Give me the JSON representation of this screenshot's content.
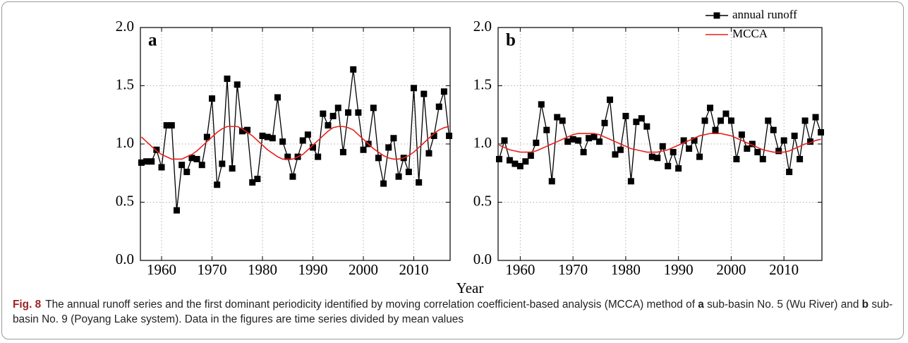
{
  "xlabel": "Year",
  "chart_data": [
    {
      "type": "line",
      "panel_label": "a",
      "x": [
        1956,
        1957,
        1958,
        1959,
        1960,
        1961,
        1962,
        1963,
        1964,
        1965,
        1966,
        1967,
        1968,
        1969,
        1970,
        1971,
        1972,
        1973,
        1974,
        1975,
        1976,
        1977,
        1978,
        1979,
        1980,
        1981,
        1982,
        1983,
        1984,
        1985,
        1986,
        1987,
        1988,
        1989,
        1990,
        1991,
        1992,
        1993,
        1994,
        1995,
        1996,
        1997,
        1998,
        1999,
        2000,
        2001,
        2002,
        2003,
        2004,
        2005,
        2006,
        2007,
        2008,
        2009,
        2010,
        2011,
        2012,
        2013,
        2014,
        2015,
        2016,
        2017
      ],
      "series": [
        {
          "color": "#000000",
          "marker": "square",
          "values": [
            0.84,
            0.85,
            0.85,
            0.95,
            0.8,
            1.16,
            1.16,
            0.43,
            0.82,
            0.76,
            0.88,
            0.87,
            0.82,
            1.06,
            1.39,
            0.65,
            0.83,
            1.56,
            0.79,
            1.51,
            1.11,
            1.12,
            0.67,
            0.7,
            1.07,
            1.06,
            1.05,
            1.4,
            1.02,
            0.89,
            0.72,
            0.89,
            1.03,
            1.08,
            0.97,
            0.89,
            1.26,
            1.16,
            1.24,
            1.31,
            0.93,
            1.27,
            1.64,
            1.27,
            0.95,
            1.0,
            1.31,
            0.88,
            0.66,
            0.97,
            1.05,
            0.72,
            0.88,
            0.76,
            1.48,
            0.67,
            1.43,
            0.92,
            1.07,
            1.32,
            1.45,
            1.07
          ]
        },
        {
          "color": "#e8201c",
          "values": [
            1.06,
            1.02,
            0.98,
            0.94,
            0.91,
            0.89,
            0.87,
            0.87,
            0.87,
            0.89,
            0.91,
            0.94,
            0.98,
            1.02,
            1.06,
            1.1,
            1.13,
            1.15,
            1.15,
            1.15,
            1.13,
            1.1,
            1.07,
            1.03,
            0.99,
            0.95,
            0.92,
            0.89,
            0.87,
            0.87,
            0.87,
            0.89,
            0.91,
            0.95,
            0.99,
            1.03,
            1.07,
            1.11,
            1.14,
            1.15,
            1.15,
            1.14,
            1.12,
            1.08,
            1.04,
            1.0,
            0.96,
            0.93,
            0.9,
            0.88,
            0.87,
            0.87,
            0.88,
            0.9,
            0.93,
            0.97,
            1.01,
            1.05,
            1.09,
            1.12,
            1.14,
            1.15
          ]
        }
      ],
      "xlim": [
        1955.8,
        2017.2
      ],
      "xticks": [
        1960,
        1970,
        1980,
        1990,
        2000,
        2010
      ],
      "ylim": [
        0,
        2
      ],
      "yticks": [
        {
          "value": 0,
          "label": "0.0"
        },
        {
          "value": 0.5,
          "label": "0.5"
        },
        {
          "value": 1,
          "label": "1.0"
        },
        {
          "value": 1.5,
          "label": "1.5"
        },
        {
          "value": 2,
          "label": "2.0"
        }
      ],
      "grid": true
    },
    {
      "type": "line",
      "panel_label": "b",
      "x": [
        1956,
        1957,
        1958,
        1959,
        1960,
        1961,
        1962,
        1963,
        1964,
        1965,
        1966,
        1967,
        1968,
        1969,
        1970,
        1971,
        1972,
        1973,
        1974,
        1975,
        1976,
        1977,
        1978,
        1979,
        1980,
        1981,
        1982,
        1983,
        1984,
        1985,
        1986,
        1987,
        1988,
        1989,
        1990,
        1991,
        1992,
        1993,
        1994,
        1995,
        1996,
        1997,
        1998,
        1999,
        2000,
        2001,
        2002,
        2003,
        2004,
        2005,
        2006,
        2007,
        2008,
        2009,
        2010,
        2011,
        2012,
        2013,
        2014,
        2015,
        2016,
        2017
      ],
      "series": [
        {
          "name": "annual runoff",
          "color": "#000000",
          "marker": "square",
          "values": [
            0.87,
            1.03,
            0.86,
            0.83,
            0.81,
            0.85,
            0.9,
            1.01,
            1.34,
            1.12,
            0.68,
            1.23,
            1.2,
            1.02,
            1.04,
            1.03,
            0.93,
            1.05,
            1.06,
            1.02,
            1.18,
            1.38,
            0.91,
            0.95,
            1.24,
            0.68,
            1.19,
            1.22,
            1.15,
            0.89,
            0.88,
            0.98,
            0.81,
            0.93,
            0.79,
            1.03,
            0.96,
            1.03,
            0.89,
            1.2,
            1.31,
            1.12,
            1.2,
            1.26,
            1.2,
            0.87,
            1.08,
            0.96,
            1.0,
            0.93,
            0.87,
            1.2,
            1.12,
            0.94,
            1.03,
            0.76,
            1.07,
            0.87,
            1.2,
            1.02,
            1.23,
            1.1
          ]
        },
        {
          "name": "MCCA",
          "color": "#e8201c",
          "values": [
            0.99,
            0.97,
            0.95,
            0.94,
            0.93,
            0.93,
            0.93,
            0.94,
            0.96,
            0.98,
            1.0,
            1.02,
            1.04,
            1.06,
            1.08,
            1.09,
            1.09,
            1.09,
            1.09,
            1.08,
            1.06,
            1.04,
            1.02,
            1.0,
            0.98,
            0.96,
            0.95,
            0.94,
            0.93,
            0.93,
            0.93,
            0.94,
            0.95,
            0.97,
            0.99,
            1.01,
            1.03,
            1.05,
            1.07,
            1.08,
            1.09,
            1.09,
            1.09,
            1.08,
            1.07,
            1.05,
            1.03,
            1.01,
            0.99,
            0.97,
            0.95,
            0.94,
            0.93,
            0.93,
            0.93,
            0.94,
            0.96,
            0.98,
            1.0,
            1.01,
            1.03,
            1.04
          ]
        }
      ],
      "xlim": [
        1955.8,
        2017.2
      ],
      "xticks": [
        1960,
        1970,
        1980,
        1990,
        2000,
        2010
      ],
      "ylim": [
        0,
        2
      ],
      "yticks": [
        {
          "value": 0,
          "label": "0.0"
        },
        {
          "value": 0.5,
          "label": "0.5"
        },
        {
          "value": 1,
          "label": "1.0"
        },
        {
          "value": 1.5,
          "label": "1.5"
        },
        {
          "value": 2,
          "label": "2.0"
        }
      ],
      "grid": true,
      "legend": "upper right"
    }
  ],
  "caption": {
    "label": "Fig. 8",
    "segments": [
      "The annual runoff series and the first dominant periodicity identified by moving correlation coefficient-based analysis (MCCA) method of ",
      "a",
      " sub-basin No. 5 (Wu River) and ",
      "b",
      " sub-basin No. 9 (Poyang Lake system). Data in the figures are time series divided by mean values"
    ]
  }
}
